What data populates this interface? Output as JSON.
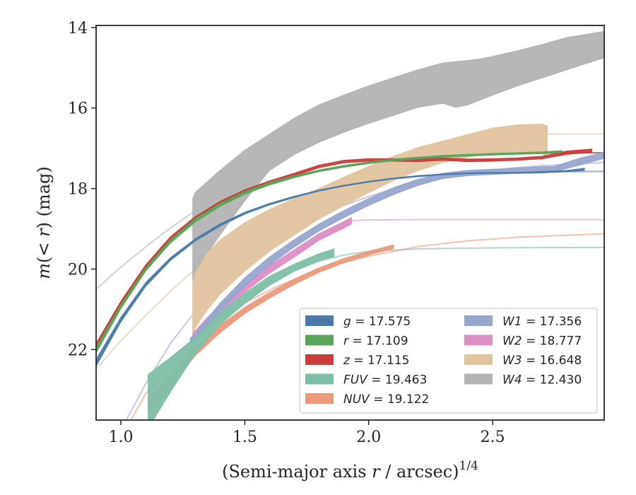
{
  "chart_data": {
    "type": "line",
    "xlabel": "(Semi-major axis r / arcsec)^{1/4}",
    "ylabel": "m(< r) (mag)",
    "xlim": [
      0.9,
      2.95
    ],
    "ylim": [
      23.75,
      13.95
    ],
    "y_inverted": true,
    "xticks": [
      1.0,
      1.5,
      2.0,
      2.5
    ],
    "xtick_labels": [
      "1.0",
      "1.5",
      "2.0",
      "2.5"
    ],
    "yticks": [
      14,
      16,
      18,
      20,
      22
    ],
    "ytick_labels": [
      "14",
      "16",
      "18",
      "20",
      "22"
    ],
    "grid": false,
    "legend_position": "lower-right",
    "legend_columns": 2,
    "series": [
      {
        "name": "g = 17.575",
        "label_var": "g",
        "label_val": "17.575",
        "color": "#4c7aa8",
        "totmag": 17.575,
        "model_x": [
          0.9,
          1.0,
          1.1,
          1.2,
          1.3,
          1.4,
          1.5,
          1.6,
          1.7,
          1.8,
          1.9,
          2.0,
          2.1,
          2.2,
          2.3,
          2.4,
          2.5,
          2.6,
          2.7,
          2.8,
          2.95
        ],
        "model_y": [
          22.4,
          21.3,
          20.42,
          19.78,
          19.3,
          18.93,
          18.63,
          18.4,
          18.22,
          18.06,
          17.94,
          17.84,
          17.76,
          17.7,
          17.66,
          17.63,
          17.61,
          17.6,
          17.59,
          17.58,
          17.575
        ],
        "data_x": [
          0.9,
          1.0,
          1.1,
          1.2,
          1.3,
          1.4,
          1.5,
          1.6,
          1.7,
          1.8,
          1.9,
          2.0,
          2.1,
          2.2,
          2.3,
          2.4,
          2.5,
          2.6,
          2.7,
          2.8,
          2.87
        ],
        "data_lo": [
          22.4,
          21.3,
          20.42,
          19.78,
          19.3,
          18.93,
          18.63,
          18.4,
          18.22,
          18.06,
          17.94,
          17.84,
          17.76,
          17.7,
          17.66,
          17.63,
          17.62,
          17.62,
          17.61,
          17.58,
          17.55
        ],
        "data_hi": [
          22.25,
          21.2,
          20.34,
          19.72,
          19.25,
          18.88,
          18.59,
          18.37,
          18.19,
          18.04,
          17.92,
          17.82,
          17.74,
          17.68,
          17.64,
          17.61,
          17.6,
          17.6,
          17.58,
          17.55,
          17.5
        ]
      },
      {
        "name": "r = 17.109",
        "label_var": "r",
        "label_val": "17.109",
        "color": "#5aa55a",
        "totmag": 17.109,
        "model_x": [
          0.9,
          1.0,
          1.1,
          1.2,
          1.3,
          1.4,
          1.5,
          1.6,
          1.7,
          1.8,
          1.9,
          2.0,
          2.1,
          2.2,
          2.3,
          2.4,
          2.5,
          2.6,
          2.7,
          2.8,
          2.95
        ],
        "model_y": [
          22.0,
          20.92,
          20.0,
          19.3,
          18.78,
          18.4,
          18.1,
          17.88,
          17.7,
          17.56,
          17.45,
          17.36,
          17.29,
          17.24,
          17.2,
          17.17,
          17.15,
          17.13,
          17.12,
          17.115,
          17.109
        ],
        "data_x": [
          0.9,
          1.0,
          1.1,
          1.2,
          1.3,
          1.4,
          1.5,
          1.6,
          1.7,
          1.8,
          1.9,
          2.0,
          2.1,
          2.2,
          2.3,
          2.4,
          2.5,
          2.6,
          2.7,
          2.78
        ],
        "data_lo": [
          22.08,
          20.98,
          20.05,
          19.35,
          18.83,
          18.44,
          18.14,
          17.91,
          17.73,
          17.58,
          17.47,
          17.38,
          17.31,
          17.26,
          17.22,
          17.19,
          17.17,
          17.15,
          17.13,
          17.1
        ],
        "data_hi": [
          21.95,
          20.88,
          19.97,
          19.27,
          18.75,
          18.37,
          18.07,
          17.85,
          17.68,
          17.54,
          17.43,
          17.34,
          17.27,
          17.22,
          17.18,
          17.15,
          17.13,
          17.11,
          17.09,
          17.06
        ]
      },
      {
        "name": "z = 17.115",
        "label_var": "z",
        "label_val": "17.115",
        "color": "#cc3b3b",
        "totmag": 17.115,
        "model_x": [
          0.9,
          1.0,
          1.1,
          1.2,
          1.3,
          1.4,
          1.5,
          1.6,
          1.7,
          1.8,
          1.9,
          2.0,
          2.1,
          2.2,
          2.3,
          2.4,
          2.5,
          2.6,
          2.7,
          2.8,
          2.95
        ],
        "model_y": [
          21.92,
          20.86,
          19.95,
          19.25,
          18.74,
          18.36,
          18.07,
          17.86,
          17.69,
          17.55,
          17.44,
          17.36,
          17.29,
          17.24,
          17.2,
          17.17,
          17.15,
          17.13,
          17.12,
          17.118,
          17.115
        ],
        "data_x": [
          0.9,
          1.0,
          1.1,
          1.2,
          1.3,
          1.4,
          1.5,
          1.6,
          1.7,
          1.8,
          1.9,
          2.0,
          2.1,
          2.2,
          2.3,
          2.4,
          2.5,
          2.6,
          2.7,
          2.8,
          2.9
        ],
        "data_lo": [
          21.98,
          20.92,
          20.0,
          19.29,
          18.78,
          18.39,
          18.1,
          17.87,
          17.68,
          17.48,
          17.36,
          17.32,
          17.32,
          17.33,
          17.3,
          17.33,
          17.32,
          17.3,
          17.26,
          17.15,
          17.1
        ],
        "data_hi": [
          21.85,
          20.8,
          19.9,
          19.2,
          18.7,
          18.32,
          18.03,
          17.81,
          17.62,
          17.42,
          17.3,
          17.26,
          17.26,
          17.27,
          17.24,
          17.27,
          17.26,
          17.24,
          17.2,
          17.07,
          17.02
        ]
      },
      {
        "name": "FUV = 19.463",
        "label_var": "FUV",
        "label_val": "19.463",
        "color": "#7dbfa8",
        "totmag": 19.463,
        "model_x": [
          1.1,
          1.2,
          1.3,
          1.4,
          1.5,
          1.6,
          1.7,
          1.8,
          1.9,
          2.0,
          2.2,
          2.4,
          2.6,
          2.8,
          2.95
        ],
        "model_y": [
          24.0,
          22.75,
          21.85,
          21.2,
          20.7,
          20.32,
          20.02,
          19.8,
          19.65,
          19.56,
          19.5,
          19.48,
          19.47,
          19.465,
          19.463
        ],
        "data_x": [
          1.11,
          1.2,
          1.3,
          1.4,
          1.5,
          1.6,
          1.7,
          1.8,
          1.86
        ],
        "data_lo": [
          23.95,
          23.05,
          22.1,
          21.38,
          20.85,
          20.4,
          20.05,
          19.8,
          19.68
        ],
        "data_hi": [
          22.62,
          22.2,
          21.7,
          21.08,
          20.6,
          20.18,
          19.88,
          19.62,
          19.5
        ]
      },
      {
        "name": "NUV = 19.122",
        "label_var": "NUV",
        "label_val": "19.122",
        "color": "#eb9a7d",
        "totmag": 19.122,
        "model_x": [
          1.0,
          1.1,
          1.2,
          1.3,
          1.4,
          1.5,
          1.6,
          1.7,
          1.8,
          1.9,
          2.0,
          2.2,
          2.4,
          2.6,
          2.8,
          2.95
        ],
        "model_y": [
          24.2,
          23.1,
          22.35,
          21.75,
          21.25,
          20.85,
          20.52,
          20.25,
          20.02,
          19.84,
          19.68,
          19.44,
          19.3,
          19.21,
          19.16,
          19.122
        ],
        "data_x": [
          1.11,
          1.2,
          1.3,
          1.4,
          1.5,
          1.6,
          1.7,
          1.8,
          1.9,
          2.0,
          2.1
        ],
        "data_lo": [
          23.55,
          22.9,
          22.15,
          21.58,
          21.1,
          20.72,
          20.38,
          20.08,
          19.84,
          19.65,
          19.49
        ],
        "data_hi": [
          23.25,
          22.65,
          21.95,
          21.4,
          20.95,
          20.58,
          20.25,
          19.97,
          19.74,
          19.56,
          19.4
        ]
      },
      {
        "name": "W1 = 17.356",
        "label_var": "W1",
        "label_val": "17.356",
        "color": "#97a6cc",
        "totmag": 17.356,
        "model_x": [
          1.0,
          1.1,
          1.2,
          1.3,
          1.4,
          1.5,
          1.6,
          1.7,
          1.8,
          1.9,
          2.0,
          2.1,
          2.2,
          2.3,
          2.4,
          2.5,
          2.6,
          2.7,
          2.8,
          2.95
        ],
        "model_y": [
          24.0,
          22.85,
          21.85,
          21.05,
          20.4,
          19.85,
          19.38,
          19.0,
          18.7,
          18.42,
          18.2,
          18.0,
          17.85,
          17.72,
          17.62,
          17.54,
          17.48,
          17.43,
          17.4,
          17.356
        ],
        "data_x": [
          1.28,
          1.3,
          1.4,
          1.5,
          1.6,
          1.7,
          1.8,
          1.9,
          2.0,
          2.1,
          2.2,
          2.3,
          2.4,
          2.5,
          2.6,
          2.7,
          2.75,
          2.8,
          2.85,
          2.95
        ],
        "data_lo": [
          21.9,
          21.78,
          21.05,
          20.42,
          19.9,
          19.45,
          19.05,
          18.72,
          18.42,
          18.15,
          17.92,
          17.75,
          17.68,
          17.65,
          17.62,
          17.59,
          17.58,
          17.5,
          17.42,
          17.25
        ],
        "data_hi": [
          21.72,
          21.6,
          20.85,
          20.22,
          19.7,
          19.27,
          18.88,
          18.55,
          18.25,
          17.98,
          17.77,
          17.62,
          17.55,
          17.52,
          17.49,
          17.46,
          17.45,
          17.35,
          17.25,
          17.1
        ]
      },
      {
        "name": "W2 = 18.777",
        "label_var": "W2",
        "label_val": "18.777",
        "color": "#dd8fc4",
        "totmag": 18.777,
        "model_x": [
          1.3,
          1.4,
          1.5,
          1.6,
          1.7,
          1.8,
          1.9,
          1.93,
          2.0,
          2.2,
          2.4,
          2.6,
          2.8,
          2.95
        ],
        "model_y": [
          21.65,
          21.0,
          20.47,
          20.02,
          19.63,
          19.25,
          18.92,
          18.8,
          18.78,
          18.777,
          18.777,
          18.777,
          18.777,
          18.777
        ],
        "data_x": [
          1.29,
          1.35,
          1.4,
          1.5,
          1.6,
          1.7,
          1.8,
          1.9,
          1.93
        ],
        "data_lo": [
          21.85,
          21.45,
          21.12,
          20.57,
          20.1,
          19.7,
          19.28,
          18.98,
          18.88
        ],
        "data_hi": [
          21.6,
          21.2,
          20.9,
          20.38,
          19.92,
          19.52,
          19.12,
          18.82,
          18.72
        ]
      },
      {
        "name": "W3 = 16.648",
        "label_var": "W3",
        "label_val": "16.648",
        "color": "#e0c49f",
        "totmag": 16.648,
        "model_x": [
          0.9,
          1.0,
          1.1,
          1.2,
          1.3,
          1.4,
          1.5,
          1.6,
          1.7,
          1.8,
          1.9,
          2.0,
          2.1,
          2.2,
          2.3,
          2.4,
          2.5,
          2.6,
          2.72,
          2.8,
          2.95
        ],
        "model_y": [
          22.48,
          21.78,
          21.15,
          20.55,
          20.0,
          19.52,
          19.08,
          18.68,
          18.33,
          18.02,
          17.76,
          17.5,
          17.28,
          17.1,
          16.95,
          16.82,
          16.72,
          16.66,
          16.648,
          16.648,
          16.648
        ],
        "data_x": [
          1.29,
          1.3,
          1.35,
          1.4,
          1.5,
          1.6,
          1.7,
          1.8,
          1.9,
          2.0,
          2.1,
          2.2,
          2.3,
          2.4,
          2.5,
          2.6,
          2.7,
          2.72
        ],
        "data_lo": [
          21.65,
          21.45,
          21.0,
          20.62,
          20.05,
          19.55,
          19.15,
          18.75,
          18.42,
          18.1,
          17.8,
          17.55,
          17.35,
          17.22,
          17.12,
          17.08,
          17.12,
          17.25
        ],
        "data_hi": [
          20.35,
          20.1,
          19.6,
          19.28,
          18.85,
          18.52,
          18.25,
          18.0,
          17.72,
          17.45,
          17.2,
          16.98,
          16.82,
          16.66,
          16.5,
          16.42,
          16.4,
          16.45
        ]
      },
      {
        "name": "W4 = 12.430",
        "label_var": "W4",
        "label_val": "12.430",
        "color": "#b3b3b3",
        "totmag": 12.43,
        "model_x": [
          0.9,
          1.0,
          1.1,
          1.2,
          1.3,
          1.4,
          1.5,
          1.6,
          1.7,
          1.8,
          1.9,
          2.0,
          2.1,
          2.2,
          2.3,
          2.4,
          2.5,
          2.6,
          2.7,
          2.8,
          2.95
        ],
        "model_y": [
          20.5,
          19.95,
          19.45,
          18.98,
          18.55,
          18.13,
          17.73,
          17.38,
          17.06,
          16.78,
          16.52,
          16.28,
          16.05,
          15.85,
          15.65,
          15.48,
          15.3,
          15.13,
          14.98,
          14.82,
          14.6
        ],
        "data_x": [
          1.29,
          1.3,
          1.4,
          1.5,
          1.6,
          1.7,
          1.8,
          1.9,
          2.0,
          2.1,
          2.2,
          2.3,
          2.35,
          2.4,
          2.45,
          2.5,
          2.6,
          2.7,
          2.8,
          2.95
        ],
        "data_lo": [
          20.3,
          20.05,
          19.15,
          18.3,
          17.55,
          17.15,
          16.85,
          16.6,
          16.38,
          16.18,
          15.98,
          15.88,
          15.98,
          15.92,
          15.8,
          15.68,
          15.45,
          15.25,
          15.05,
          14.75
        ],
        "data_hi": [
          18.25,
          18.1,
          17.55,
          17.05,
          16.65,
          16.25,
          15.92,
          15.68,
          15.45,
          15.25,
          15.05,
          14.88,
          14.85,
          14.82,
          14.78,
          14.72,
          14.58,
          14.42,
          14.25,
          14.1
        ]
      }
    ]
  }
}
